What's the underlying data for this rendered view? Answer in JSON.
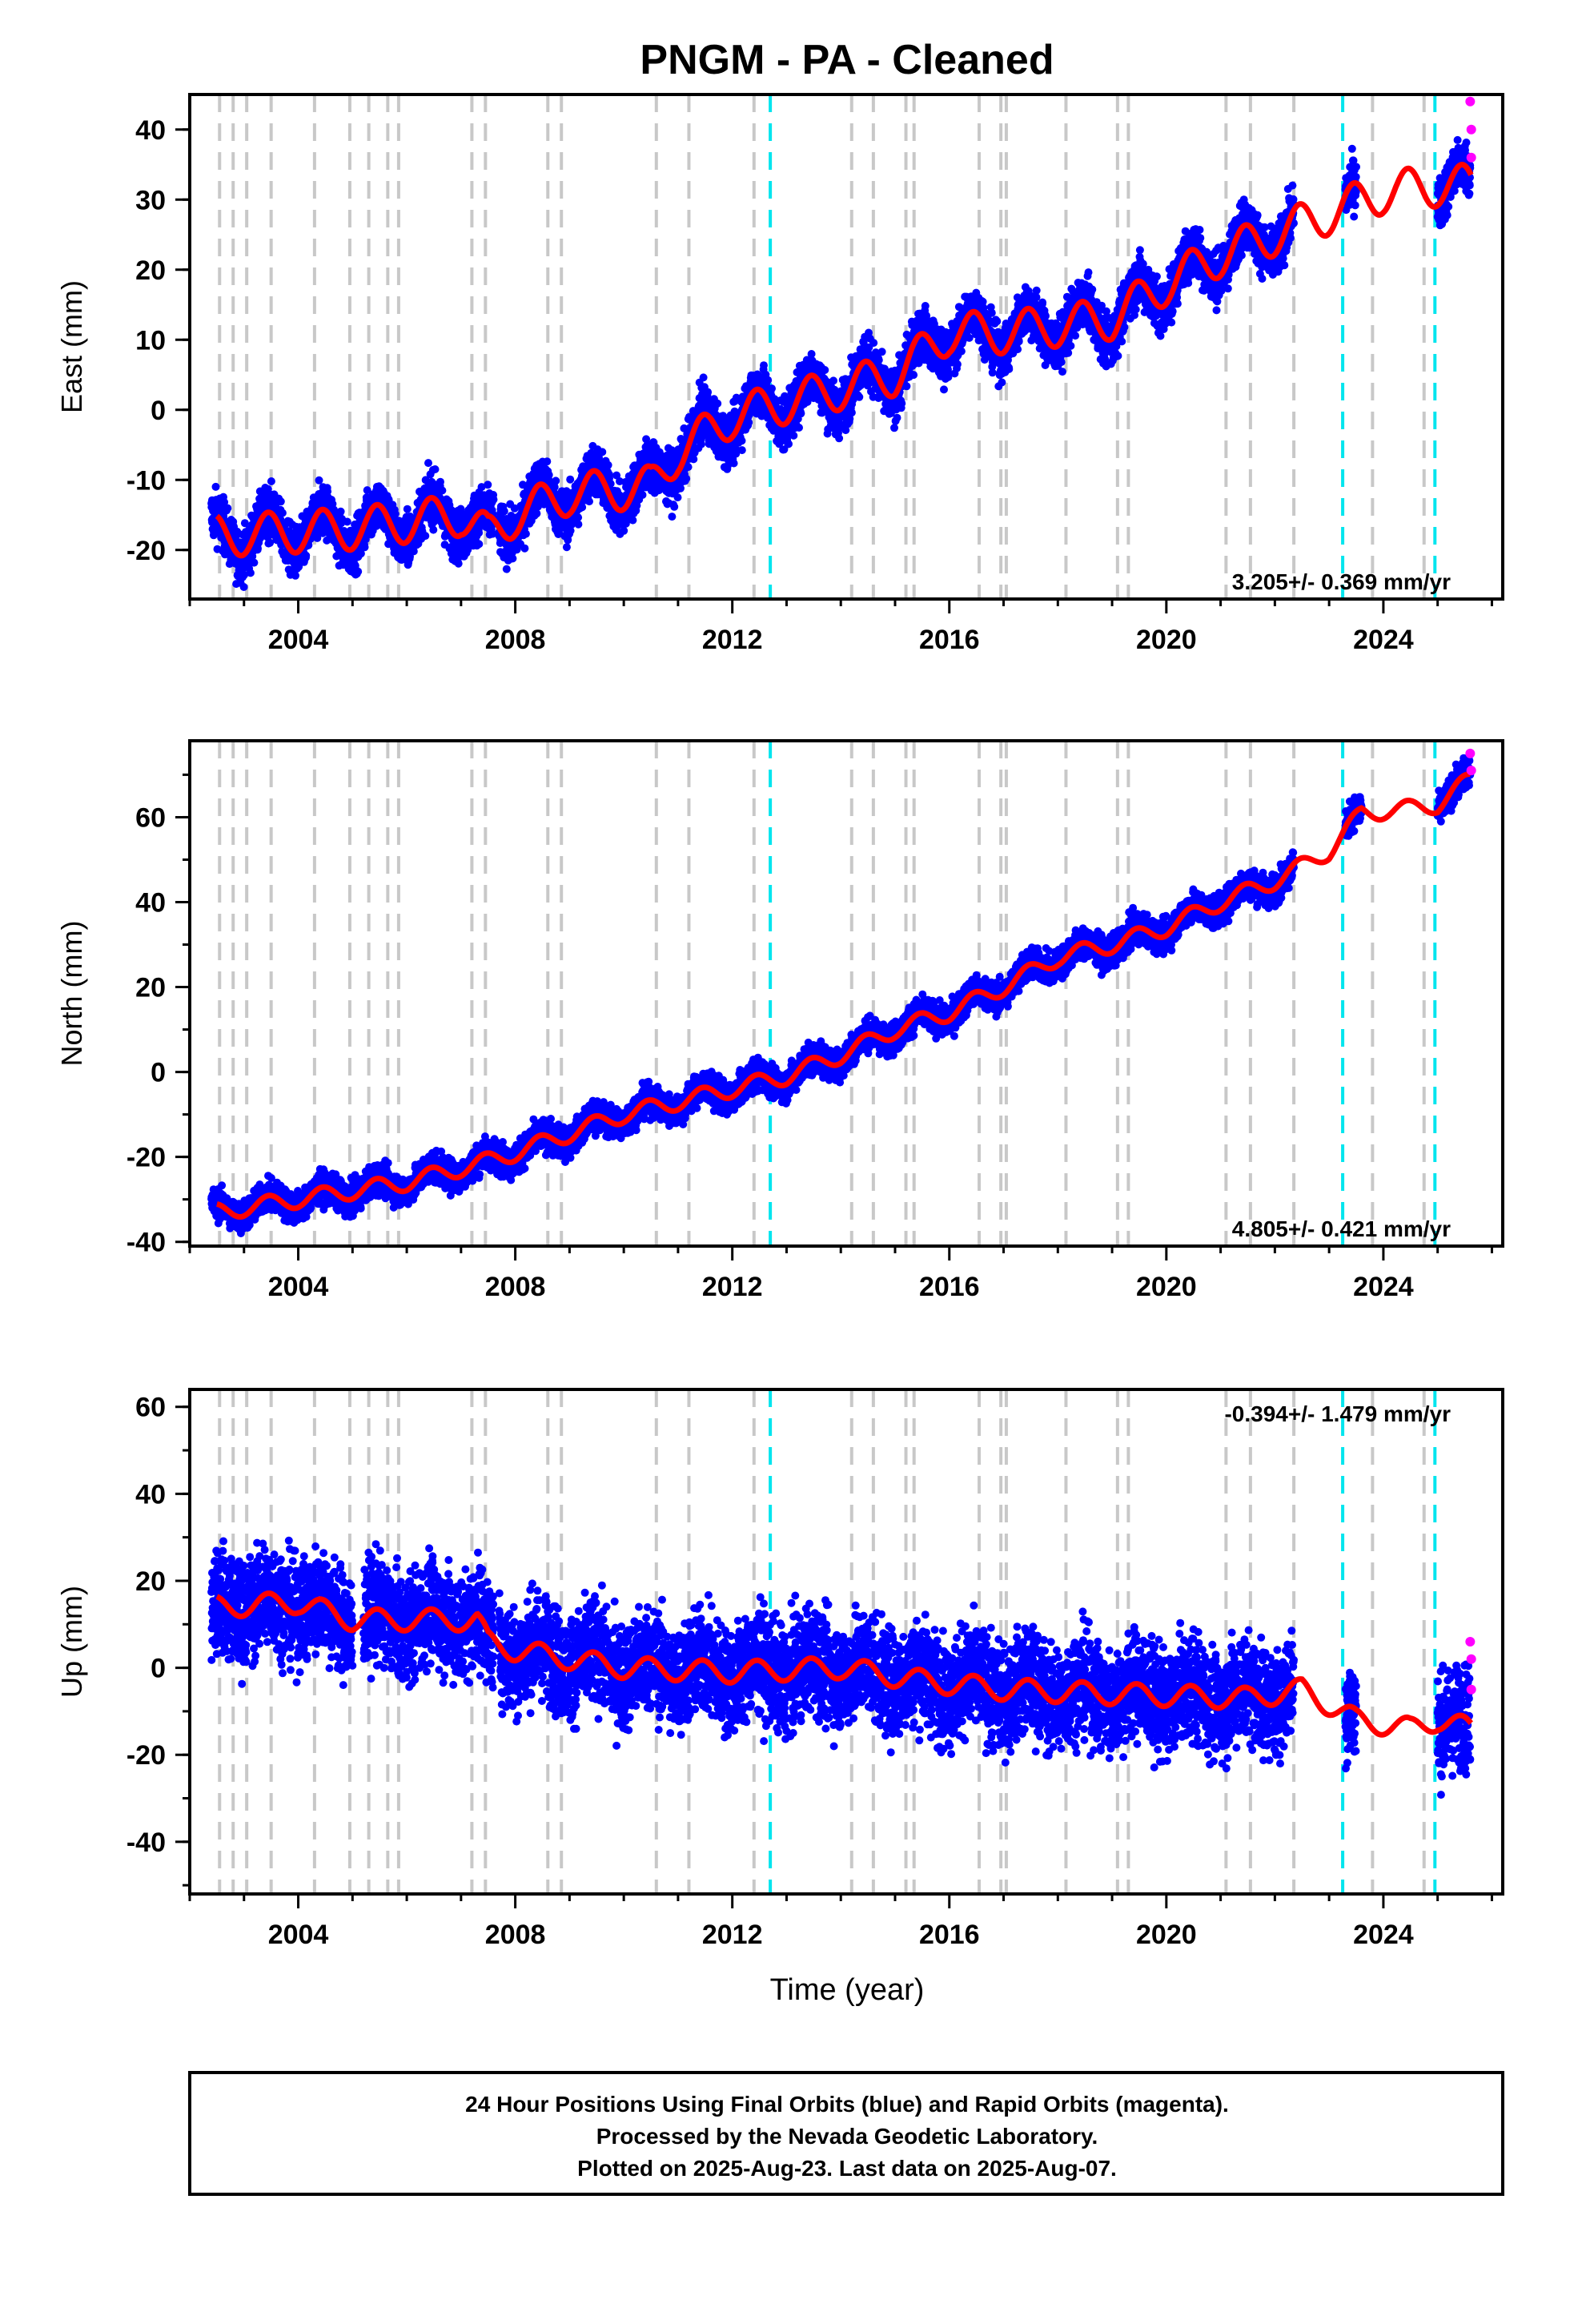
{
  "chart_data": {
    "type": "scatter",
    "title": "PNGM  - PA - Cleaned",
    "xlabel": "Time (year)",
    "xlim": [
      2002.0,
      2026.2
    ],
    "x_ticks": [
      "2004",
      "2008",
      "2012",
      "2016",
      "2020",
      "2024"
    ],
    "grid": false,
    "legend": "none",
    "colors": {
      "final": "#0000ff",
      "rapid": "#ff00ff",
      "model": "#ff0000",
      "offset": "#c8c8c8",
      "equipment": "#00e5ee"
    },
    "offset_lines_gray": [
      2002.55,
      2002.8,
      2003.05,
      2003.5,
      2004.3,
      2004.95,
      2005.3,
      2005.65,
      2005.85,
      2007.2,
      2007.45,
      2008.6,
      2008.85,
      2010.6,
      2011.2,
      2012.4,
      2014.2,
      2014.6,
      2015.2,
      2015.35,
      2016.55,
      2016.95,
      2017.05,
      2018.15,
      2019.1,
      2019.3,
      2021.1,
      2021.55,
      2022.35,
      2023.8,
      2024.75
    ],
    "offset_lines_cyan": [
      2012.7,
      2023.25,
      2024.95
    ],
    "panels": [
      {
        "id": "east",
        "ylabel": "East (mm)",
        "ylim": [
          -27,
          45
        ],
        "y_ticks": [
          "40",
          "30",
          "20",
          "10",
          "0",
          "-10",
          "-20"
        ],
        "rate": "3.205+/- 0.369 mm/yr",
        "rate_position": "bottom-right",
        "trend_pts": [
          [
            2002.5,
            -18
          ],
          [
            2005.0,
            -17
          ],
          [
            2007.0,
            -15
          ],
          [
            2007.5,
            -18
          ],
          [
            2008.0,
            -15
          ],
          [
            2009.0,
            -12
          ],
          [
            2010.5,
            -11
          ],
          [
            2011.0,
            -6
          ],
          [
            2012.0,
            -1
          ],
          [
            2013.0,
            1
          ],
          [
            2014.0,
            3
          ],
          [
            2015.0,
            5
          ],
          [
            2016.0,
            11
          ],
          [
            2017.0,
            11
          ],
          [
            2018.0,
            12
          ],
          [
            2019.0,
            13
          ],
          [
            2020.0,
            18
          ],
          [
            2021.0,
            22
          ],
          [
            2022.0,
            25
          ],
          [
            2023.0,
            28
          ],
          [
            2024.0,
            31
          ],
          [
            2025.0,
            32
          ],
          [
            2025.6,
            32
          ]
        ],
        "seasonal_amp": 3.0,
        "scatter": 1.8,
        "model_from": 2002.5,
        "data_segments": [
          [
            2002.4,
            2007.6
          ],
          [
            2007.7,
            2022.35
          ],
          [
            2023.3,
            2023.5
          ],
          [
            2025.0,
            2025.6
          ]
        ],
        "rapid_points": [
          [
            2025.6,
            44
          ],
          [
            2025.62,
            40
          ],
          [
            2025.62,
            36
          ]
        ]
      },
      {
        "id": "north",
        "ylabel": "North (mm)",
        "ylim": [
          -41,
          78
        ],
        "y_ticks": [
          "60",
          "40",
          "20",
          "0",
          "-20",
          "-40"
        ],
        "rate": "4.805+/- 0.421 mm/yr",
        "rate_position": "bottom-right",
        "trend_pts": [
          [
            2002.5,
            -33
          ],
          [
            2004.0,
            -30
          ],
          [
            2006.0,
            -26
          ],
          [
            2007.5,
            -21
          ],
          [
            2008.0,
            -19
          ],
          [
            2010.0,
            -10
          ],
          [
            2012.0,
            -4
          ],
          [
            2013.0,
            -1
          ],
          [
            2014.0,
            4
          ],
          [
            2015.0,
            10
          ],
          [
            2016.0,
            14
          ],
          [
            2017.0,
            20
          ],
          [
            2018.0,
            27
          ],
          [
            2019.0,
            30
          ],
          [
            2020.0,
            34
          ],
          [
            2021.0,
            40
          ],
          [
            2022.0,
            45
          ],
          [
            2023.0,
            52
          ],
          [
            2023.6,
            61
          ],
          [
            2024.5,
            62
          ],
          [
            2025.0,
            63
          ],
          [
            2025.6,
            69
          ]
        ],
        "seasonal_amp": 2.0,
        "scatter": 1.8,
        "model_from": 2002.5,
        "data_segments": [
          [
            2002.4,
            2022.35
          ],
          [
            2023.3,
            2023.6
          ],
          [
            2025.0,
            2025.6
          ]
        ],
        "rapid_points": [
          [
            2025.6,
            75
          ],
          [
            2025.62,
            71
          ]
        ]
      },
      {
        "id": "up",
        "ylabel": "Up (mm)",
        "ylim": [
          -52,
          64
        ],
        "y_ticks": [
          "60",
          "40",
          "20",
          "0",
          "-20",
          "-40"
        ],
        "rate": "-0.394+/- 1.479 mm/yr",
        "rate_position": "top-right",
        "trend_pts": [
          [
            2002.5,
            14
          ],
          [
            2004.0,
            15
          ],
          [
            2005.0,
            11
          ],
          [
            2007.3,
            11
          ],
          [
            2007.5,
            6
          ],
          [
            2008.0,
            4
          ],
          [
            2010.0,
            0
          ],
          [
            2012.0,
            -1
          ],
          [
            2014.0,
            0
          ],
          [
            2015.5,
            -3
          ],
          [
            2017.0,
            -5
          ],
          [
            2019.0,
            -6
          ],
          [
            2021.5,
            -7
          ],
          [
            2022.5,
            -5
          ],
          [
            2023.5,
            -12
          ],
          [
            2024.5,
            -14
          ],
          [
            2025.0,
            -12
          ],
          [
            2025.6,
            -14
          ]
        ],
        "seasonal_amp": 2.5,
        "scatter": 6.0,
        "model_from": 2002.5,
        "data_segments": [
          [
            2002.4,
            2005.0
          ],
          [
            2005.2,
            2007.6
          ],
          [
            2007.7,
            2022.35
          ],
          [
            2023.3,
            2023.5
          ],
          [
            2025.0,
            2025.6
          ]
        ],
        "rapid_points": [
          [
            2025.6,
            6
          ],
          [
            2025.62,
            2
          ],
          [
            2025.62,
            -5
          ]
        ]
      }
    ]
  },
  "footer": {
    "line1": "24 Hour Positions Using Final Orbits (blue) and Rapid Orbits (magenta).",
    "line2": "Processed by the Nevada Geodetic Laboratory.",
    "line3": "Plotted on 2025-Aug-23. Last data on 2025-Aug-07."
  }
}
